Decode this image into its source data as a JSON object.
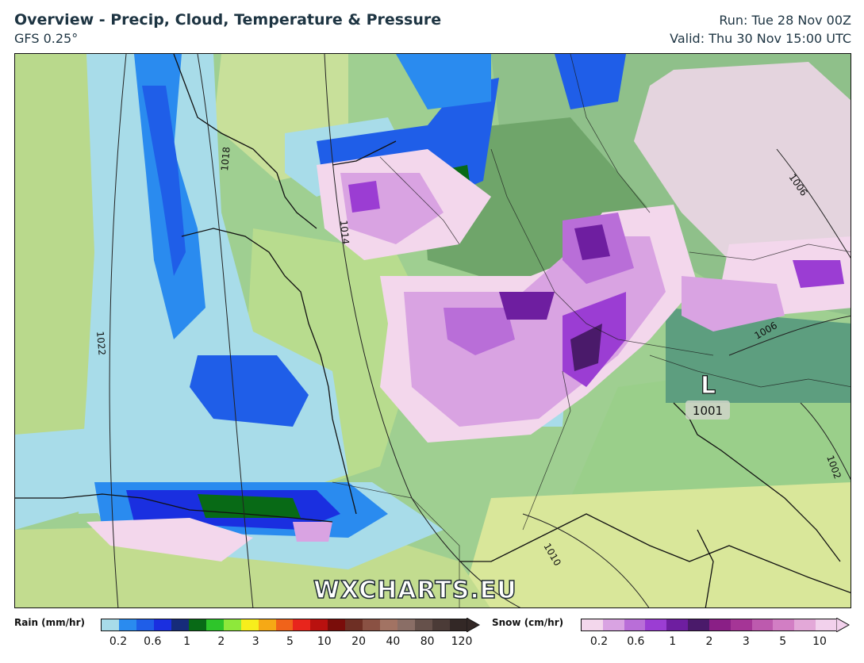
{
  "header": {
    "title": "Overview - Precip, Cloud, Temperature & Pressure",
    "model": "GFS 0.25°",
    "run": "Run: Tue 28 Nov 00Z",
    "valid": "Valid: Thu 30 Nov 15:00 UTC"
  },
  "map": {
    "isobar_labels": [
      "1018",
      "1014",
      "1022",
      "1010",
      "1006",
      "1006",
      "1002"
    ],
    "low_center": {
      "symbol": "L",
      "pressure": "1001"
    },
    "watermark": "WXCHARTS.EU"
  },
  "legend": {
    "rain": {
      "label": "Rain (mm/hr)",
      "ticks": [
        "0.2",
        "0.6",
        "1",
        "2",
        "3",
        "5",
        "10",
        "20",
        "40",
        "80",
        "120"
      ],
      "colors": [
        "#a8dce9",
        "#2a8bef",
        "#1f5ee8",
        "#1a2fe0",
        "#162c7a",
        "#086a16",
        "#2ec52a",
        "#8ee83b",
        "#f7ee1c",
        "#f6a915",
        "#f0631a",
        "#e8251c",
        "#b9110f",
        "#7a0d0a",
        "#6e2f24",
        "#8a5143",
        "#a27363",
        "#8a6e66",
        "#66514b",
        "#4b3b37",
        "#332826"
      ]
    },
    "snow": {
      "label": "Snow (cm/hr)",
      "ticks": [
        "0.2",
        "0.6",
        "1",
        "2",
        "3",
        "5",
        "10"
      ],
      "colors": [
        "#f3d7ec",
        "#d9a3e2",
        "#b96ed8",
        "#9b3dd3",
        "#6e1ea0",
        "#4a1a6a",
        "#8a1f86",
        "#a53596",
        "#bd5aae",
        "#d27ec4",
        "#e3a8d8",
        "#f2d1ec"
      ]
    }
  }
}
